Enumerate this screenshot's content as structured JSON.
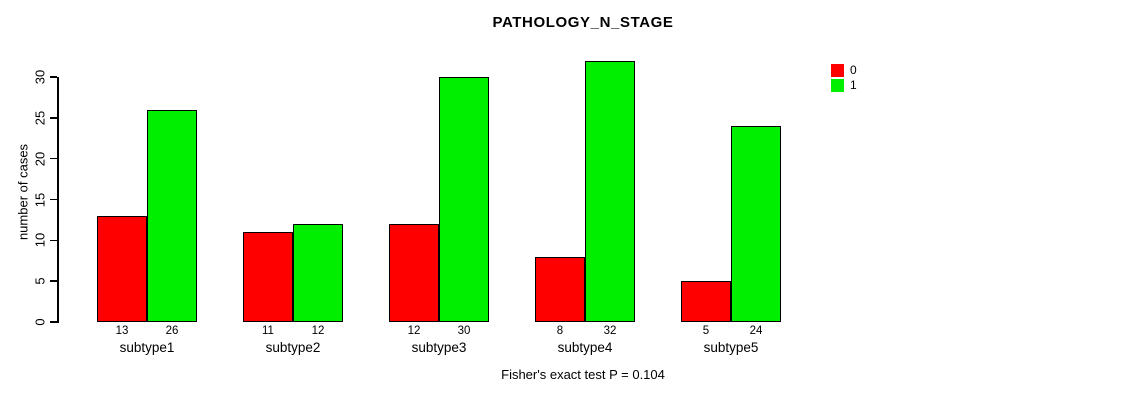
{
  "chart_data": {
    "type": "bar",
    "title": "PATHOLOGY_N_STAGE",
    "ylabel": "number of cases",
    "xlabel": "",
    "caption": "Fisher's exact test P = 0.104",
    "categories": [
      "subtype1",
      "subtype2",
      "subtype3",
      "subtype4",
      "subtype5"
    ],
    "series": [
      {
        "name": "0",
        "color": "#ff0000",
        "values": [
          13,
          11,
          12,
          8,
          5
        ]
      },
      {
        "name": "1",
        "color": "#00ee00",
        "values": [
          26,
          12,
          30,
          32,
          24
        ]
      }
    ],
    "yticks": [
      0,
      5,
      10,
      15,
      20,
      25,
      30
    ],
    "ylim": [
      0,
      30
    ],
    "grid": false,
    "legend_position": "top-right",
    "bar_labels_shown": true
  }
}
